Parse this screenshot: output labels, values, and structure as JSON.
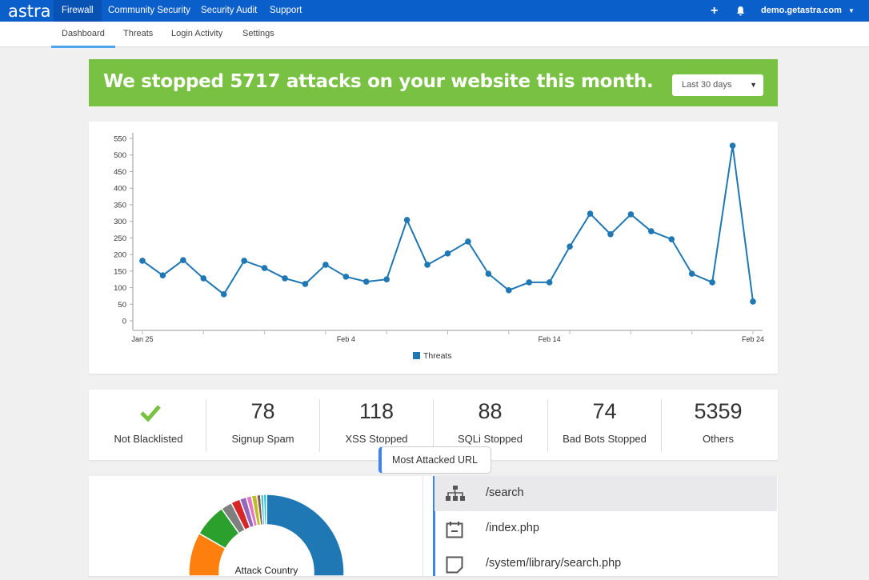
{
  "topnav": {
    "logo": "astra",
    "items": [
      {
        "label": "Firewall",
        "active": true
      },
      {
        "label": "Community Security"
      },
      {
        "label": "Security Audit"
      },
      {
        "label": "Support"
      }
    ],
    "site": "demo.getastra.com",
    "icons": [
      "plus-icon",
      "bell-icon",
      "caret-down-icon"
    ]
  },
  "subnav": {
    "items": [
      {
        "label": "Dashboard",
        "active": true
      },
      {
        "label": "Threats"
      },
      {
        "label": "Login Activity"
      },
      {
        "label": "Settings"
      }
    ]
  },
  "banner": {
    "headline": "We stopped 5717 attacks on your website this month.",
    "range": "Last 30 days",
    "color": "#79c142"
  },
  "chart_data": {
    "type": "line",
    "x": [
      "Jan 25",
      "Jan 26",
      "Jan 27",
      "Jan 28",
      "Jan 29",
      "Jan 30",
      "Jan 31",
      "Feb 1",
      "Feb 2",
      "Feb 3",
      "Feb 4",
      "Feb 5",
      "Feb 6",
      "Feb 7",
      "Feb 8",
      "Feb 9",
      "Feb 10",
      "Feb 11",
      "Feb 12",
      "Feb 13",
      "Feb 14",
      "Feb 15",
      "Feb 16",
      "Feb 17",
      "Feb 18",
      "Feb 19",
      "Feb 20",
      "Feb 21",
      "Feb 22",
      "Feb 23",
      "Feb 24"
    ],
    "series": [
      {
        "name": "Threats",
        "color": "#1f77b4",
        "values": [
          181,
          137,
          183,
          128,
          80,
          181,
          159,
          128,
          111,
          169,
          133,
          118,
          125,
          304,
          169,
          203,
          239,
          142,
          92,
          116,
          116,
          224,
          323,
          261,
          321,
          270,
          246,
          142,
          116,
          528,
          58
        ]
      }
    ],
    "yticks": [
      0,
      50,
      100,
      150,
      200,
      250,
      300,
      350,
      400,
      450,
      500,
      550
    ],
    "ylim": [
      0,
      550
    ],
    "xtick_labels": [
      "Jan 25",
      "Feb 4",
      "Feb 14",
      "Feb 24"
    ],
    "legend": "bottom",
    "grid": false
  },
  "stats": [
    {
      "icon": "check-icon",
      "label": "Not Blacklisted",
      "color": "#79c142"
    },
    {
      "value": "78",
      "label": "Signup Spam"
    },
    {
      "value": "118",
      "label": "XSS Stopped"
    },
    {
      "value": "88",
      "label": "SQLi Stopped"
    },
    {
      "value": "74",
      "label": "Bad Bots Stopped"
    },
    {
      "value": "5359",
      "label": "Others"
    }
  ],
  "donut": {
    "title": "Attack Country",
    "slices": [
      {
        "value": 50,
        "color": "#1f77b4"
      },
      {
        "value": 33.3,
        "color": "#ff7f0e"
      },
      {
        "value": 6.9,
        "color": "#2ca02c"
      },
      {
        "value": 2.3,
        "color": "#7f7f7f"
      },
      {
        "value": 1.9,
        "color": "#d62728"
      },
      {
        "value": 1.4,
        "color": "#9467bd"
      },
      {
        "value": 1.1,
        "color": "#e377c2"
      },
      {
        "value": 1.1,
        "color": "#bcbd22"
      },
      {
        "value": 0.8,
        "color": "#8c564b"
      },
      {
        "value": 0.6,
        "color": "#17becf"
      },
      {
        "value": 0.6,
        "color": "#17becf"
      }
    ]
  },
  "urls": {
    "tooltip": "Most Attacked URL",
    "items": [
      {
        "icon": "sitemap-icon",
        "path": "/search"
      },
      {
        "icon": "calendar-icon",
        "path": "/index.php"
      },
      {
        "icon": "note-icon",
        "path": "/system/library/search.php"
      }
    ]
  }
}
